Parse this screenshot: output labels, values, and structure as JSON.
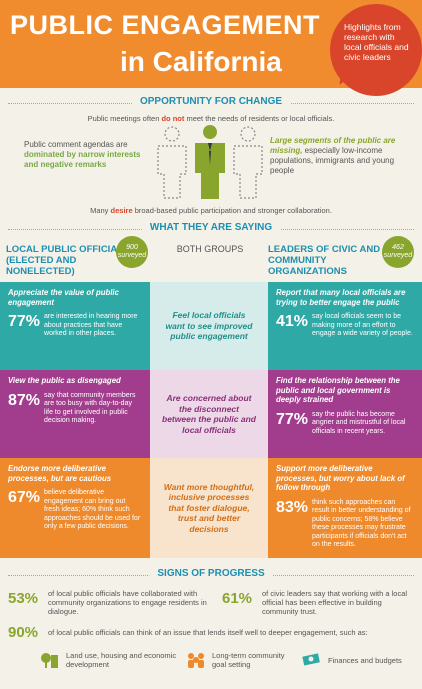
{
  "header": {
    "title_line1": "PUBLIC ENGAGEMENT",
    "title_line2": "in California",
    "bubble": "Highlights from research with local officials and civic leaders"
  },
  "opportunity": {
    "heading": "OPPORTUNITY FOR CHANGE",
    "intro_a": "Public meetings often ",
    "intro_em": "do not",
    "intro_b": " meet the needs of residents or local officials.",
    "left_a": "Public comment agendas are ",
    "left_em": "dominated by narrow interests and negative remarks",
    "right_em": "Large segments of the public are missing,",
    "right_b": " especially low-income populations, immigrants and young people",
    "outro_a": "Many ",
    "outro_em": "desire",
    "outro_b": " broad-based public participation and stronger collaboration."
  },
  "saying": {
    "heading": "WHAT THEY ARE SAYING",
    "left_header": "LOCAL PUBLIC OFFICIALS (ELECTED AND NONELECTED)",
    "left_badge": "900 surveyed",
    "mid_header": "BOTH GROUPS",
    "right_header": "LEADERS OF CIVIC AND COMMUNITY ORGANIZATIONS",
    "right_badge": "462 surveyed",
    "rows": [
      {
        "left_head": "Appreciate the value of public engagement",
        "left_pct": "77%",
        "left_text": "are interested in hearing more about practices that have worked in other places.",
        "mid": "Feel local officials want to see improved public engagement",
        "right_head": "Report that many local officials are trying to better engage the public",
        "right_pct": "41%",
        "right_text": "say local officials seem to be making more of an effort to engage a wide variety of people."
      },
      {
        "left_head": "View the public as disengaged",
        "left_pct": "87%",
        "left_text": "say that community members are too busy with day-to-day life to get involved in public decision making.",
        "mid": "Are concerned about the disconnect between the public and local officials",
        "right_head": "Find the relationship between the public and local government is deeply strained",
        "right_pct": "77%",
        "right_text": "say the public has become angrier and mistrustful of local officials in recent years."
      },
      {
        "left_head": "Endorse more deliberative processes, but are cautious",
        "left_pct": "67%",
        "left_text": "believe deliberative engagement can bring out fresh ideas; 60% think such approaches should be used for only a few public decisions.",
        "mid": "Want more thoughtful, inclusive processes that foster dialogue, trust and better decisions",
        "right_head": "Support more deliberative processes, but worry about lack of follow through",
        "right_pct": "83%",
        "right_text": "think such approaches can result in better understanding of public concerns; 58% believe these processes may frustrate participants if officials don't act on the results."
      }
    ]
  },
  "progress": {
    "heading": "SIGNS OF PROGRESS",
    "item1_pct": "53%",
    "item1_text": "of local public officials have collaborated with community organizations to engage residents in dialogue.",
    "item2_pct": "61%",
    "item2_text": "of civic leaders say that working with a local official has been effective in building community trust.",
    "item3_pct": "90%",
    "item3_text": "of local public officials can think of an issue that lends itself well to deeper engagement, such as:",
    "issues": [
      {
        "label": "Land use, housing and economic development",
        "icon": "building-icon",
        "color": "#8aa52d"
      },
      {
        "label": "Long-term community goal setting",
        "icon": "community-icon",
        "color": "#ee8a2c"
      },
      {
        "label": "Finances and budgets",
        "icon": "money-icon",
        "color": "#2fa9a6"
      }
    ]
  }
}
